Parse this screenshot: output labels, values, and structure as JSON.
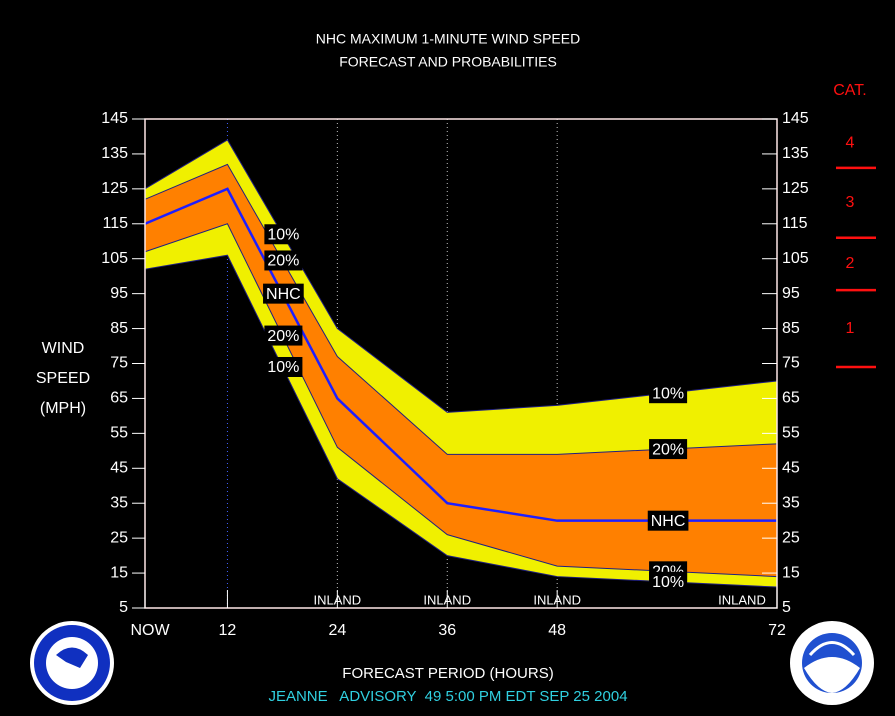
{
  "chart_data": {
    "type": "probability-band",
    "title": "NHC MAXIMUM 1-MINUTE WIND SPEED",
    "subtitle": "FORECAST AND PROBABILITIES",
    "ylabel_lines": [
      "WIND",
      "SPEED",
      "(MPH)"
    ],
    "xlabel": "FORECAST PERIOD (HOURS)",
    "footer": "JEANNE   ADVISORY  49 5:00 PM EDT SEP 25 2004",
    "x": [
      3,
      12,
      24,
      36,
      48,
      72
    ],
    "xlim": [
      3,
      72
    ],
    "xticks": [
      {
        "value": 3,
        "label": "NOW"
      },
      12,
      24,
      36,
      48,
      72
    ],
    "ylim": [
      5,
      145
    ],
    "yticks": [
      5,
      15,
      25,
      35,
      45,
      55,
      65,
      75,
      85,
      95,
      105,
      115,
      125,
      135,
      145
    ],
    "series": [
      {
        "name": "10%",
        "color": "#f0f000",
        "values": [
          125,
          139,
          85,
          61,
          63,
          70
        ]
      },
      {
        "name": "20%",
        "color": "#ff8000",
        "values": [
          122,
          132,
          77,
          49,
          49,
          52
        ]
      },
      {
        "name": "NHC",
        "color": "#1e1eff",
        "values": [
          115,
          125,
          65,
          35,
          30,
          30
        ]
      },
      {
        "name": "20%",
        "color": "#ff8000",
        "values": [
          107,
          115,
          51,
          26,
          17,
          14
        ]
      },
      {
        "name": "10%",
        "color": "#f0f000",
        "values": [
          102,
          106,
          42,
          20,
          14,
          11
        ]
      }
    ],
    "inland_x": [
      24,
      36,
      48,
      72
    ],
    "inland_labels": [
      "INLAND",
      "INLAND",
      "INLAND",
      "INLAND"
    ],
    "category_title": "CAT.",
    "categories": [
      "1",
      "2",
      "3",
      "4"
    ],
    "category_thresholds": [
      74,
      96,
      111,
      131
    ],
    "category_color": "#ff1010"
  }
}
